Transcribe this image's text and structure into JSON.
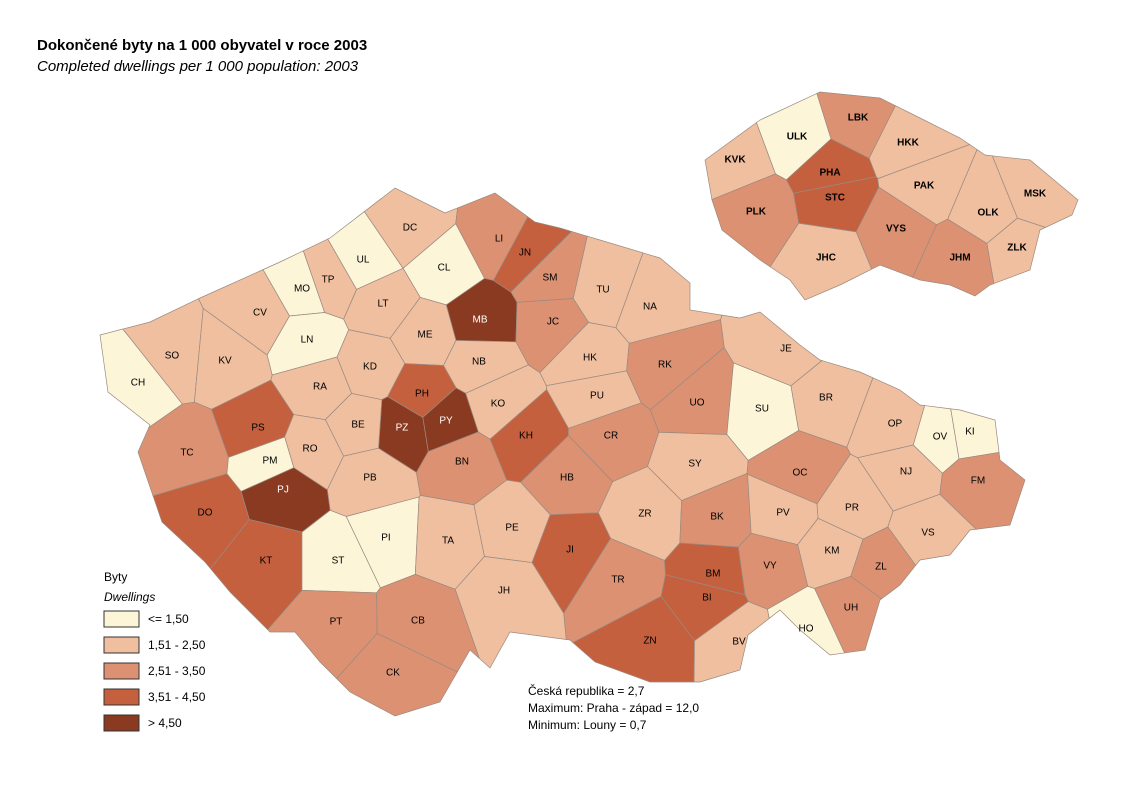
{
  "title": "Dokončené byty na 1 000 obyvatel v roce 2003",
  "subtitle": "Completed dwellings per 1 000 population: 2003",
  "districts": [
    {
      "label": "CH",
      "color": "#fdf5d8"
    },
    {
      "label": "SO",
      "color": "#efbf9f"
    },
    {
      "label": "KV",
      "color": "#efbf9f"
    },
    {
      "label": "CV",
      "color": "#efbf9f"
    },
    {
      "label": "MO",
      "color": "#fdf5d8"
    },
    {
      "label": "TP",
      "color": "#efbf9f"
    },
    {
      "label": "UL",
      "color": "#fdf5d8"
    },
    {
      "label": "DC",
      "color": "#efbf9f"
    },
    {
      "label": "CL",
      "color": "#fdf5d8"
    },
    {
      "label": "LI",
      "color": "#dc9272"
    },
    {
      "label": "JN",
      "color": "#c5603f"
    },
    {
      "label": "SM",
      "color": "#dc9272"
    },
    {
      "label": "TU",
      "color": "#efbf9f"
    },
    {
      "label": "NA",
      "color": "#efbf9f"
    },
    {
      "label": "LN",
      "color": "#fdf5d8"
    },
    {
      "label": "LT",
      "color": "#efbf9f"
    },
    {
      "label": "ME",
      "color": "#efbf9f"
    },
    {
      "label": "MB",
      "color": "#8b3a22"
    },
    {
      "label": "JC",
      "color": "#dc9272"
    },
    {
      "label": "KD",
      "color": "#efbf9f"
    },
    {
      "label": "NB",
      "color": "#efbf9f"
    },
    {
      "label": "HK",
      "color": "#efbf9f"
    },
    {
      "label": "RK",
      "color": "#dc9272"
    },
    {
      "label": "RA",
      "color": "#efbf9f"
    },
    {
      "label": "PH",
      "color": "#c5603f"
    },
    {
      "label": "PZ",
      "color": "#8b3a22"
    },
    {
      "label": "PY",
      "color": "#8b3a22"
    },
    {
      "label": "KO",
      "color": "#efbf9f"
    },
    {
      "label": "PU",
      "color": "#efbf9f"
    },
    {
      "label": "UO",
      "color": "#dc9272"
    },
    {
      "label": "BE",
      "color": "#efbf9f"
    },
    {
      "label": "KH",
      "color": "#c5603f"
    },
    {
      "label": "CR",
      "color": "#dc9272"
    },
    {
      "label": "SU",
      "color": "#fdf5d8"
    },
    {
      "label": "BR",
      "color": "#efbf9f"
    },
    {
      "label": "JE",
      "color": "#efbf9f"
    },
    {
      "label": "OP",
      "color": "#efbf9f"
    },
    {
      "label": "OV",
      "color": "#fdf5d8"
    },
    {
      "label": "KI",
      "color": "#fdf5d8"
    },
    {
      "label": "TC",
      "color": "#dc9272"
    },
    {
      "label": "PS",
      "color": "#c5603f"
    },
    {
      "label": "RO",
      "color": "#efbf9f"
    },
    {
      "label": "PM",
      "color": "#fdf5d8"
    },
    {
      "label": "PB",
      "color": "#efbf9f"
    },
    {
      "label": "BN",
      "color": "#dc9272"
    },
    {
      "label": "HB",
      "color": "#dc9272"
    },
    {
      "label": "SY",
      "color": "#efbf9f"
    },
    {
      "label": "OC",
      "color": "#dc9272"
    },
    {
      "label": "NJ",
      "color": "#efbf9f"
    },
    {
      "label": "FM",
      "color": "#dc9272"
    },
    {
      "label": "PJ",
      "color": "#8b3a22"
    },
    {
      "label": "DO",
      "color": "#c5603f"
    },
    {
      "label": "ZR",
      "color": "#efbf9f"
    },
    {
      "label": "BK",
      "color": "#dc9272"
    },
    {
      "label": "PV",
      "color": "#efbf9f"
    },
    {
      "label": "PR",
      "color": "#efbf9f"
    },
    {
      "label": "VS",
      "color": "#efbf9f"
    },
    {
      "label": "PI",
      "color": "#fdf5d8"
    },
    {
      "label": "TA",
      "color": "#efbf9f"
    },
    {
      "label": "PE",
      "color": "#efbf9f"
    },
    {
      "label": "JI",
      "color": "#c5603f"
    },
    {
      "label": "KT",
      "color": "#c5603f"
    },
    {
      "label": "ST",
      "color": "#fdf5d8"
    },
    {
      "label": "KM",
      "color": "#efbf9f"
    },
    {
      "label": "ZL",
      "color": "#dc9272"
    },
    {
      "label": "VY",
      "color": "#dc9272"
    },
    {
      "label": "BM",
      "color": "#c5603f"
    },
    {
      "label": "BI",
      "color": "#c5603f"
    },
    {
      "label": "TR",
      "color": "#dc9272"
    },
    {
      "label": "JH",
      "color": "#efbf9f"
    },
    {
      "label": "UH",
      "color": "#dc9272"
    },
    {
      "label": "HO",
      "color": "#fdf5d8"
    },
    {
      "label": "PT",
      "color": "#dc9272"
    },
    {
      "label": "CB",
      "color": "#dc9272"
    },
    {
      "label": "ZN",
      "color": "#c5603f"
    },
    {
      "label": "BV",
      "color": "#efbf9f"
    },
    {
      "label": "CK",
      "color": "#dc9272"
    }
  ],
  "regions": [
    {
      "label": "ULK",
      "color": "#fdf5d8"
    },
    {
      "label": "LBK",
      "color": "#dc9272"
    },
    {
      "label": "HKK",
      "color": "#efbf9f"
    },
    {
      "label": "KVK",
      "color": "#efbf9f"
    },
    {
      "label": "PHA",
      "color": "#c5603f"
    },
    {
      "label": "STC",
      "color": "#c5603f"
    },
    {
      "label": "PAK",
      "color": "#efbf9f"
    },
    {
      "label": "MSK",
      "color": "#efbf9f"
    },
    {
      "label": "OLK",
      "color": "#efbf9f"
    },
    {
      "label": "PLK",
      "color": "#dc9272"
    },
    {
      "label": "VYS",
      "color": "#dc9272"
    },
    {
      "label": "ZLK",
      "color": "#efbf9f"
    },
    {
      "label": "JHC",
      "color": "#efbf9f"
    },
    {
      "label": "JHM",
      "color": "#dc9272"
    }
  ],
  "legend": {
    "title": "Byty",
    "subtitle": "Dwellings",
    "items": [
      {
        "label": "<= 1,50",
        "color": "#fdf5d8"
      },
      {
        "label": "1,51 - 2,50",
        "color": "#efbf9f"
      },
      {
        "label": "2,51 - 3,50",
        "color": "#dc9272"
      },
      {
        "label": "3,51 - 4,50",
        "color": "#c5603f"
      },
      {
        "label": "> 4,50",
        "color": "#8b3a22"
      }
    ]
  },
  "notes": [
    "Česká republika =  2,7",
    "Maximum: Praha - západ =  12,0",
    "Minimum: Louny  = 0,7"
  ]
}
